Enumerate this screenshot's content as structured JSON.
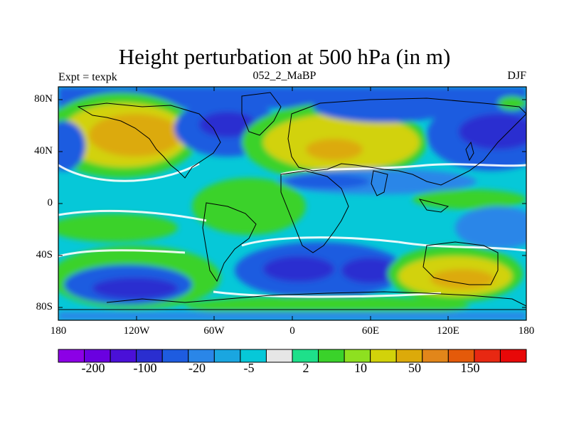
{
  "title": "Height perturbation at 500 hPa (in m)",
  "left_subtitle": "Expt = texpk",
  "center_subtitle": "052_2_MaBP",
  "right_subtitle": "DJF",
  "lat_labels": [
    "80N",
    "40N",
    "0",
    "40S",
    "80S"
  ],
  "lon_labels": [
    "180",
    "120W",
    "60W",
    "0",
    "60E",
    "120E",
    "180"
  ],
  "colorbar": {
    "colors": [
      "#8c00e6",
      "#6a00e0",
      "#4a10d8",
      "#2a2ed0",
      "#1e5ce0",
      "#2a86e8",
      "#1aa6e0",
      "#06c8d8",
      "#e6e6e6",
      "#1ee08a",
      "#3ad22a",
      "#8ee020",
      "#d2d20a",
      "#dcaa0a",
      "#e2861a",
      "#e45a0a",
      "#e82812",
      "#e80808"
    ],
    "tick_labels": [
      "-200",
      "-100",
      "-20",
      "-5",
      "2",
      "10",
      "50",
      "150"
    ]
  },
  "colors": {
    "missing": "#e6e6e6",
    "coast": "#000000"
  }
}
